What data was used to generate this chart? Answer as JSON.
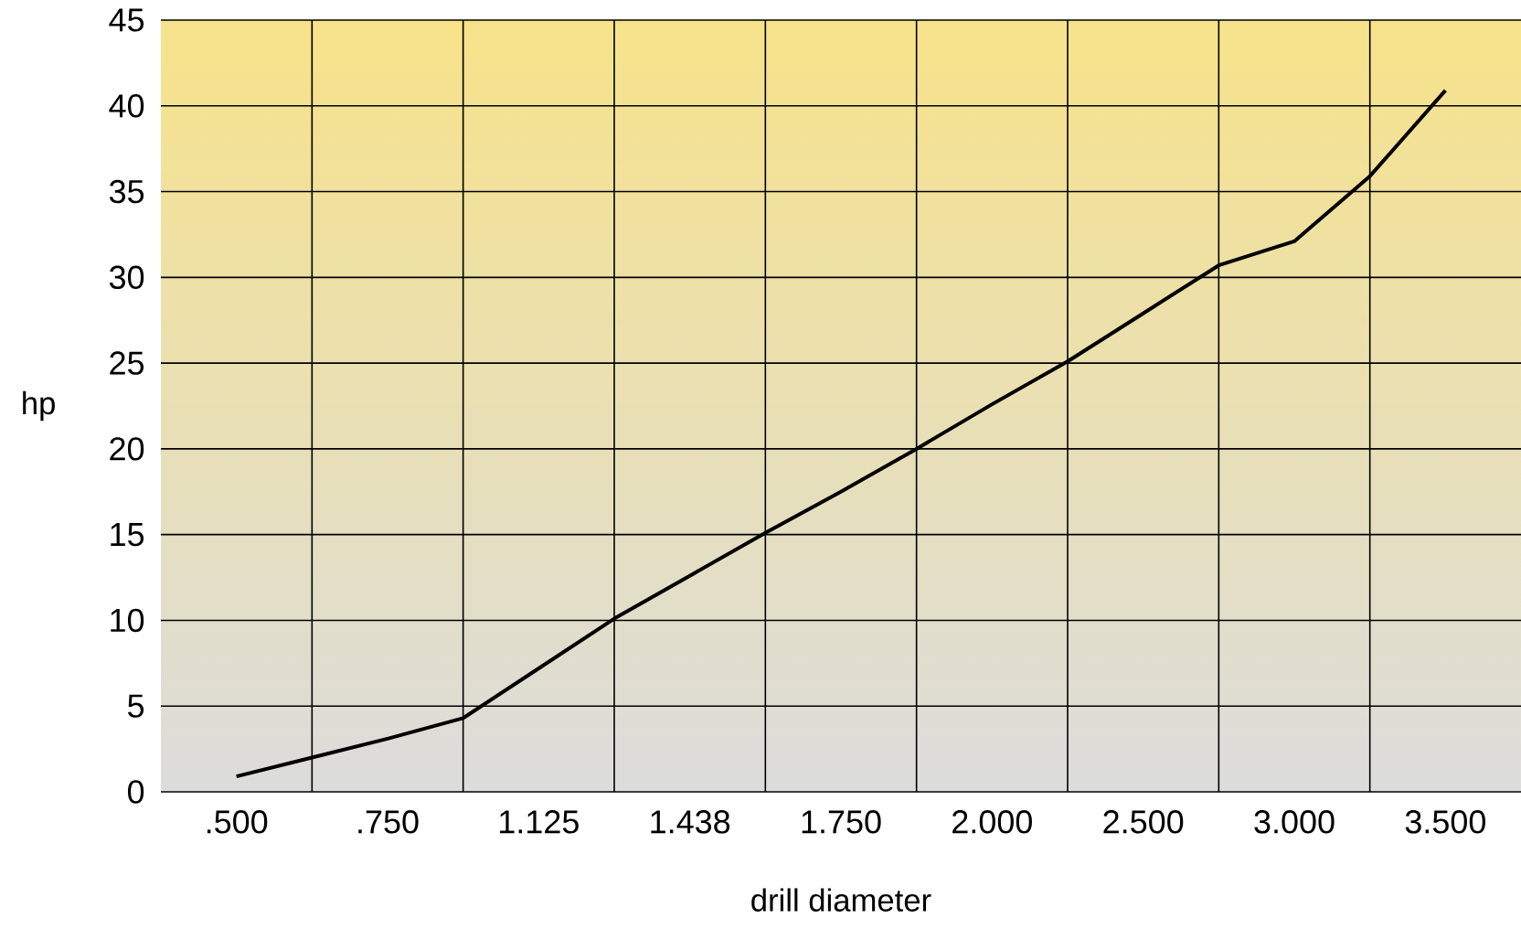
{
  "chart_data": {
    "type": "line",
    "xlabel": "drill diameter",
    "ylabel": "hp",
    "ylim": [
      0,
      45
    ],
    "categories": [
      ".500",
      null,
      ".750",
      null,
      "1.125",
      null,
      "1.438",
      null,
      "1.750",
      null,
      "2.000",
      null,
      "2.500",
      null,
      "3.000",
      null,
      "3.500"
    ],
    "yticks": [
      0,
      5,
      10,
      15,
      20,
      25,
      30,
      35,
      40,
      45
    ],
    "grid": true,
    "series": [
      {
        "color": "#000000",
        "values": [
          0.9,
          2.0,
          3.1,
          4.3,
          7.2,
          10.1,
          12.6,
          15.1,
          17.5,
          20,
          22.6,
          25.1,
          27.9,
          30.7,
          32.1,
          35.9,
          40.9
        ]
      }
    ]
  }
}
